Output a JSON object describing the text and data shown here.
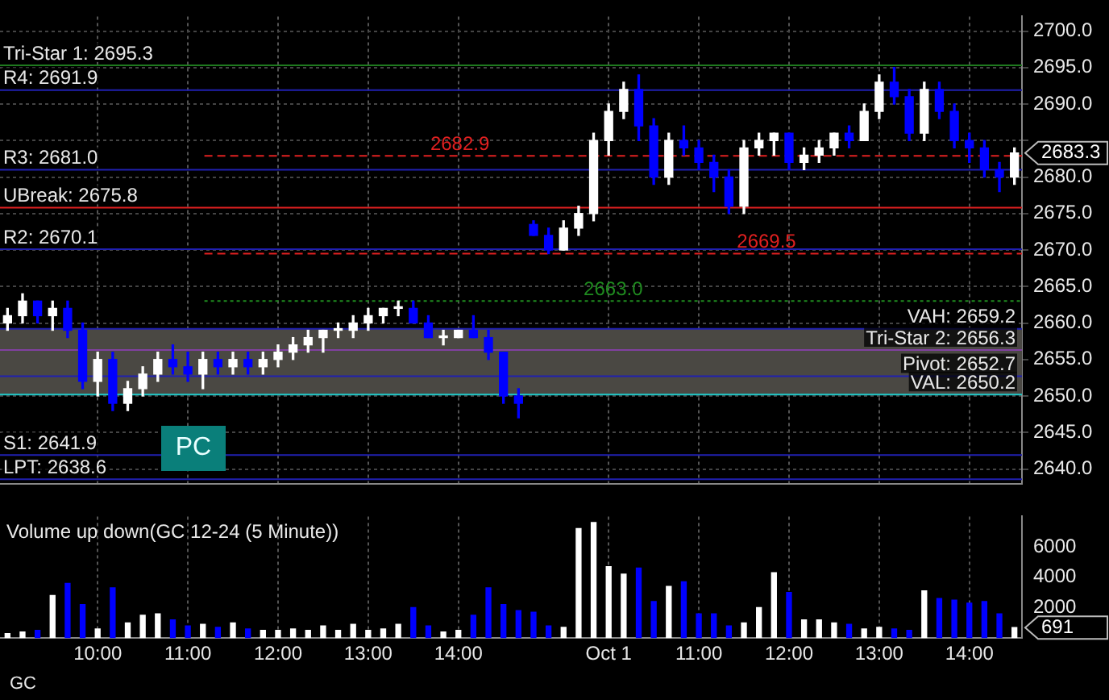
{
  "chart_data": [
    {
      "type": "candlestick",
      "categories": [
        null,
        null,
        null,
        null,
        null,
        null,
        null,
        null,
        null,
        null,
        null,
        null,
        null,
        null,
        null,
        null,
        null,
        null,
        null,
        null,
        null,
        null,
        null,
        null,
        null,
        null,
        null,
        null,
        null,
        null,
        null,
        null,
        null,
        null,
        null,
        null,
        null,
        null,
        null,
        null,
        null,
        null,
        null,
        null,
        null,
        null,
        null,
        null,
        null,
        null,
        null,
        null,
        null,
        null,
        null,
        null,
        null,
        null,
        null,
        null,
        null,
        null,
        null,
        null,
        null,
        null,
        null,
        null
      ],
      "ohlc": [
        [
          2660,
          2662,
          2659,
          2661
        ],
        [
          2661,
          2664,
          2660,
          2663
        ],
        [
          2663,
          2663,
          2660,
          2661
        ],
        [
          2661,
          2663,
          2659,
          2662
        ],
        [
          2662,
          2663,
          2658,
          2659
        ],
        [
          2659,
          2660,
          2651,
          2652
        ],
        [
          2652,
          2656,
          2650,
          2655
        ],
        [
          2655,
          2656,
          2648,
          2649
        ],
        [
          2649,
          2652,
          2648,
          2651
        ],
        [
          2651,
          2654,
          2650,
          2653
        ],
        [
          2653,
          2656,
          2652,
          2655
        ],
        [
          2655,
          2657,
          2653,
          2654
        ],
        [
          2654,
          2656,
          2652,
          2653
        ],
        [
          2653,
          2656,
          2651,
          2655
        ],
        [
          2655,
          2656,
          2653,
          2654
        ],
        [
          2654,
          2656,
          2653,
          2655
        ],
        [
          2655,
          2656,
          2653,
          2654
        ],
        [
          2654,
          2656,
          2653,
          2655
        ],
        [
          2655,
          2657,
          2654,
          2656
        ],
        [
          2656,
          2658,
          2655,
          2657
        ],
        [
          2657,
          2659,
          2656,
          2658
        ],
        [
          2658,
          2659,
          2656,
          2659
        ],
        [
          2659,
          2660,
          2658,
          2659
        ],
        [
          2659,
          2661,
          2658,
          2660
        ],
        [
          2660,
          2662,
          2659,
          2661
        ],
        [
          2661,
          2662,
          2660,
          2662
        ],
        [
          2662,
          2663,
          2661,
          2662
        ],
        [
          2662,
          2663,
          2660,
          2660
        ],
        [
          2660,
          2661,
          2658,
          2658
        ],
        [
          2658,
          2659,
          2657,
          2658
        ],
        [
          2658,
          2659,
          2658,
          2659
        ],
        [
          2659,
          2661,
          2658,
          2658
        ],
        [
          2658,
          2659,
          2655,
          2656
        ],
        [
          2656,
          2656,
          2649,
          2650
        ],
        [
          2650,
          2651,
          2647,
          2649
        ],
        [
          2673.5,
          2674,
          2672,
          2672
        ],
        [
          2672,
          2673,
          2669.5,
          2670
        ],
        [
          2670,
          2674,
          2670,
          2673
        ],
        [
          2673,
          2676,
          2672,
          2675
        ],
        [
          2675,
          2686,
          2674,
          2685
        ],
        [
          2685,
          2690,
          2683,
          2689
        ],
        [
          2689,
          2693,
          2688,
          2692
        ],
        [
          2692,
          2694,
          2685,
          2687
        ],
        [
          2687,
          2688,
          2679,
          2680
        ],
        [
          2680,
          2686,
          2679,
          2685
        ],
        [
          2685,
          2687,
          2683,
          2684
        ],
        [
          2684,
          2685,
          2681,
          2682
        ],
        [
          2682,
          2683,
          2678,
          2680
        ],
        [
          2680,
          2681,
          2675,
          2676
        ],
        [
          2676,
          2685,
          2675,
          2684
        ],
        [
          2684,
          2686,
          2683,
          2685
        ],
        [
          2685,
          2686,
          2683,
          2686
        ],
        [
          2686,
          2686,
          2681,
          2682
        ],
        [
          2682,
          2684,
          2681,
          2683
        ],
        [
          2683,
          2685,
          2682,
          2684
        ],
        [
          2684,
          2686,
          2683,
          2686
        ],
        [
          2686,
          2687,
          2684,
          2685
        ],
        [
          2685,
          2690,
          2685,
          2689
        ],
        [
          2689,
          2694,
          2688,
          2693
        ],
        [
          2693,
          2695,
          2690,
          2691
        ],
        [
          2691,
          2692,
          2685,
          2686
        ],
        [
          2686,
          2693,
          2685,
          2692
        ],
        [
          2692,
          2693,
          2688,
          2689
        ],
        [
          2689,
          2690,
          2684,
          2685
        ],
        [
          2685,
          2686,
          2682,
          2684
        ],
        [
          2684,
          2685,
          2680,
          2681
        ],
        [
          2681,
          2682,
          2678,
          2680
        ],
        [
          2680,
          2684,
          2679,
          2683.3
        ]
      ],
      "colors": [
        "#ffffff",
        "#ffffff",
        "#0000ff",
        "#ffffff",
        "#0000ff",
        "#0000ff",
        "#ffffff",
        "#0000ff",
        "#ffffff",
        "#ffffff",
        "#ffffff",
        "#0000ff",
        "#0000ff",
        "#ffffff",
        "#0000ff",
        "#ffffff",
        "#0000ff",
        "#ffffff",
        "#ffffff",
        "#ffffff",
        "#ffffff",
        "#ffffff",
        "#ffffff",
        "#ffffff",
        "#ffffff",
        "#ffffff",
        "#ffffff",
        "#0000ff",
        "#0000ff",
        "#ffffff",
        "#ffffff",
        "#0000ff",
        "#0000ff",
        "#0000ff",
        "#0000ff",
        "#0000ff",
        "#0000ff",
        "#ffffff",
        "#ffffff",
        "#ffffff",
        "#ffffff",
        "#ffffff",
        "#0000ff",
        "#0000ff",
        "#ffffff",
        "#0000ff",
        "#0000ff",
        "#0000ff",
        "#0000ff",
        "#ffffff",
        "#ffffff",
        "#ffffff",
        "#0000ff",
        "#ffffff",
        "#ffffff",
        "#ffffff",
        "#0000ff",
        "#ffffff",
        "#ffffff",
        "#0000ff",
        "#0000ff",
        "#ffffff",
        "#0000ff",
        "#0000ff",
        "#0000ff",
        "#0000ff",
        "#0000ff",
        "#ffffff"
      ],
      "ylim": [
        2638,
        2702
      ],
      "yticks": [
        {
          "value": 2640,
          "label": "2640.0"
        },
        {
          "value": 2645,
          "label": "2645.0"
        },
        {
          "value": 2650,
          "label": "2650.0"
        },
        {
          "value": 2655,
          "label": "2655.0"
        },
        {
          "value": 2660,
          "label": "2660.0"
        },
        {
          "value": 2665,
          "label": "2665.0"
        },
        {
          "value": 2670,
          "label": "2670.0"
        },
        {
          "value": 2675,
          "label": "2675.0"
        },
        {
          "value": 2680,
          "label": "2680.0"
        },
        {
          "value": 2685,
          "label": null
        },
        {
          "value": 2690,
          "label": "2690.0"
        },
        {
          "value": 2695,
          "label": "2695.0"
        },
        {
          "value": 2700,
          "label": "2700.0"
        }
      ],
      "tick_labels": "y",
      "grid": true,
      "bands": [
        {
          "axis": "y",
          "from": 2650.2,
          "to": 2659.2,
          "color": "#4a4843"
        }
      ],
      "ref_lines": [
        {
          "axis": "y",
          "value": 2695.3,
          "label": "Tri-Star 1: 2695.3",
          "color": "#1f7a1f",
          "line_style": "solid"
        },
        {
          "axis": "y",
          "value": 2691.9,
          "label": "R4: 2691.9",
          "color": "#2020b0",
          "line_style": "solid"
        },
        {
          "axis": "y",
          "value": 2681.0,
          "label": "R3: 2681.0",
          "color": "#2020b0",
          "line_style": "solid"
        },
        {
          "axis": "y",
          "value": 2675.8,
          "label": "UBreak: 2675.8",
          "color": "#e02020",
          "line_style": "solid"
        },
        {
          "axis": "y",
          "value": 2670.1,
          "label": "R2: 2670.1",
          "color": "#2020b0",
          "line_style": "solid"
        },
        {
          "axis": "y",
          "value": 2659.2,
          "label": "VAH: 2659.2",
          "color": "#2020b0",
          "line_style": "solid"
        },
        {
          "axis": "y",
          "value": 2656.3,
          "label": "Tri-Star 2: 2656.3",
          "color": "#8040a0",
          "line_style": "solid"
        },
        {
          "axis": "y",
          "value": 2652.7,
          "label": "Pivot: 2652.7",
          "color": "#2020b0",
          "line_style": "solid"
        },
        {
          "axis": "y",
          "value": 2650.2,
          "label": "VAL: 2650.2",
          "color": "#20c8c8",
          "line_style": "solid"
        },
        {
          "axis": "y",
          "value": 2641.9,
          "label": "S1: 2641.9",
          "color": "#2020b0",
          "line_style": "solid"
        },
        {
          "axis": "y",
          "value": 2638.6,
          "label": "LPT: 2638.6",
          "color": "#2020b0",
          "line_style": "solid"
        },
        {
          "axis": "y",
          "value": 2669.5,
          "label": "2669.5",
          "color": "#e02020",
          "line_style": "dashed"
        },
        {
          "axis": "y",
          "value": 2682.9,
          "label": "2682.9",
          "color": "#e02020",
          "line_style": "dashed"
        },
        {
          "axis": "y",
          "value": 2663.0,
          "label": "2663.0",
          "color": "#1f8a1f",
          "line_style": "dotted"
        }
      ],
      "annotations": [
        "2683.3",
        "PC"
      ]
    },
    {
      "type": "bar",
      "title": "Volume up down(GC 12-24 (5 Minute))",
      "categories": [
        null,
        null,
        null,
        null,
        null,
        null,
        "10:00",
        null,
        null,
        null,
        null,
        null,
        "11:00",
        null,
        null,
        null,
        null,
        null,
        "12:00",
        null,
        null,
        null,
        null,
        null,
        "13:00",
        null,
        null,
        null,
        null,
        null,
        "14:00",
        null,
        null,
        null,
        null,
        null,
        null,
        null,
        null,
        null,
        "Oct 1",
        null,
        null,
        null,
        null,
        null,
        "11:00",
        null,
        null,
        null,
        null,
        null,
        "12:00",
        null,
        null,
        null,
        null,
        null,
        "13:00",
        null,
        null,
        null,
        null,
        null,
        "14:00",
        null,
        null,
        null
      ],
      "values": [
        300,
        400,
        500,
        2800,
        3600,
        2200,
        600,
        3300,
        1000,
        1500,
        1600,
        1200,
        800,
        900,
        700,
        1000,
        600,
        500,
        500,
        600,
        500,
        800,
        500,
        900,
        500,
        600,
        900,
        2000,
        800,
        400,
        500,
        1500,
        3300,
        2200,
        1800,
        1700,
        800,
        700,
        7200,
        7600,
        4700,
        4200,
        4600,
        2400,
        3400,
        3700,
        1600,
        1600,
        800,
        1000,
        2000,
        4300,
        3000,
        1200,
        1200,
        1000,
        900,
        600,
        700,
        600,
        500,
        3100,
        2600,
        2500,
        2300,
        2400,
        1600,
        691
      ],
      "colors": [
        "#ffffff",
        "#ffffff",
        "#0000ff",
        "#ffffff",
        "#0000ff",
        "#0000ff",
        "#ffffff",
        "#0000ff",
        "#ffffff",
        "#ffffff",
        "#ffffff",
        "#0000ff",
        "#0000ff",
        "#ffffff",
        "#0000ff",
        "#ffffff",
        "#0000ff",
        "#ffffff",
        "#ffffff",
        "#ffffff",
        "#ffffff",
        "#ffffff",
        "#ffffff",
        "#ffffff",
        "#ffffff",
        "#ffffff",
        "#ffffff",
        "#0000ff",
        "#0000ff",
        "#ffffff",
        "#ffffff",
        "#0000ff",
        "#0000ff",
        "#0000ff",
        "#0000ff",
        "#0000ff",
        "#0000ff",
        "#ffffff",
        "#ffffff",
        "#ffffff",
        "#ffffff",
        "#ffffff",
        "#0000ff",
        "#0000ff",
        "#ffffff",
        "#0000ff",
        "#0000ff",
        "#0000ff",
        "#0000ff",
        "#ffffff",
        "#ffffff",
        "#ffffff",
        "#0000ff",
        "#ffffff",
        "#ffffff",
        "#ffffff",
        "#0000ff",
        "#ffffff",
        "#ffffff",
        "#0000ff",
        "#0000ff",
        "#ffffff",
        "#0000ff",
        "#0000ff",
        "#0000ff",
        "#0000ff",
        "#0000ff",
        "#ffffff"
      ],
      "ylim": [
        0,
        8000
      ],
      "yticks": [
        {
          "value": 0,
          "label": null
        },
        2000,
        4000,
        6000
      ],
      "grid": "x",
      "annotations": [
        "691",
        "GC"
      ]
    }
  ]
}
